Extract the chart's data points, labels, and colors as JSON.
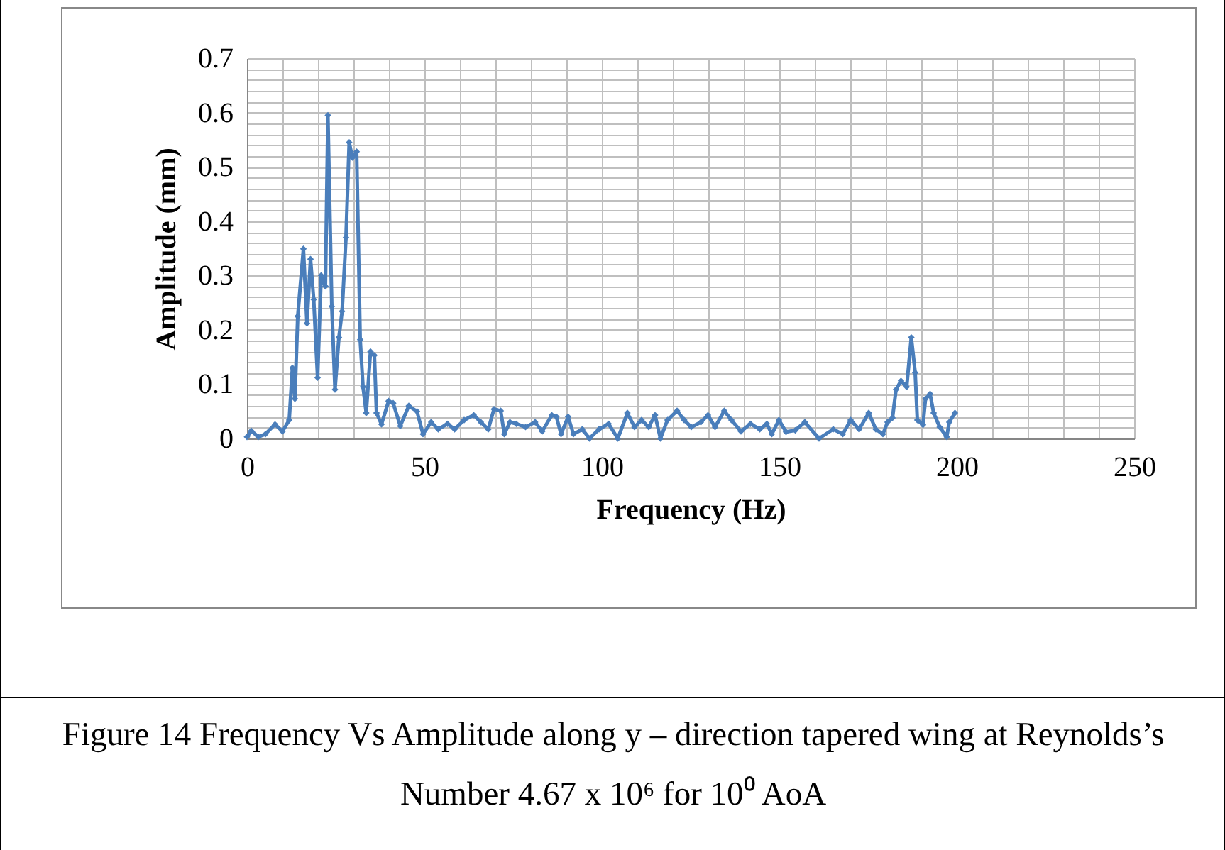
{
  "chart_data": {
    "type": "line",
    "title": "Figure 14 Frequency Vs Amplitude along y – direction tapered wing at Reynolds’s Number 4.67 x 10⁶ for 10⁰ AoA",
    "xlabel": "Frequency (Hz)",
    "ylabel": "Amplitude (mm)",
    "x": [
      0,
      1.2,
      3.2,
      5.2,
      7.9,
      10,
      11.9,
      12.8,
      13.5,
      14.3,
      15.9,
      16.9,
      17.9,
      18.8,
      19.9,
      20.9,
      22.1,
      22.8,
      23.9,
      24.8,
      25.9,
      26.8,
      27.9,
      28.8,
      29.7,
      30.9,
      31.9,
      32.7,
      33.6,
      34.8,
      35.9,
      36.5,
      37.9,
      39.9,
      41.2,
      43.2,
      45.6,
      47.9,
      49.6,
      51.9,
      53.9,
      56.5,
      58.5,
      61.2,
      63.9,
      65.9,
      68,
      69.6,
      71.5,
      72.5,
      74.1,
      75.9,
      78.5,
      81.2,
      83.2,
      85.9,
      87.2,
      88.5,
      90.5,
      92,
      94.5,
      96.5,
      99.2,
      101.9,
      104.5,
      107.2,
      109.2,
      111.2,
      113.2,
      115,
      116.5,
      118.5,
      121.2,
      123.2,
      125.2,
      127.9,
      129.9,
      131.9,
      134.5,
      136.5,
      139.2,
      141.9,
      144.5,
      146.5,
      147.9,
      149.9,
      151.9,
      154.5,
      157.2,
      161.2,
      165.2,
      167.9,
      170.1,
      172.5,
      175.2,
      177.2,
      179.2,
      180.5,
      181.9,
      182.9,
      184.3,
      185.9,
      187.2,
      188.3,
      188.9,
      190.5,
      191.2,
      192.5,
      193.5,
      195.2,
      197.2,
      197.9,
      199.5
    ],
    "series": [
      {
        "color": "#4a7ebb",
        "values": [
          0.003,
          0.014,
          0.003,
          0.008,
          0.026,
          0.013,
          0.034,
          0.13,
          0.073,
          0.225,
          0.349,
          0.212,
          0.33,
          0.256,
          0.112,
          0.3,
          0.28,
          0.595,
          0.243,
          0.09,
          0.186,
          0.234,
          0.37,
          0.545,
          0.517,
          0.528,
          0.182,
          0.095,
          0.047,
          0.16,
          0.153,
          0.047,
          0.026,
          0.069,
          0.065,
          0.023,
          0.06,
          0.05,
          0.008,
          0.03,
          0.017,
          0.027,
          0.017,
          0.034,
          0.043,
          0.03,
          0.017,
          0.054,
          0.051,
          0.008,
          0.03,
          0.027,
          0.021,
          0.03,
          0.013,
          0.043,
          0.04,
          0.008,
          0.04,
          0.008,
          0.017,
          0.0,
          0.017,
          0.027,
          0.0,
          0.047,
          0.021,
          0.034,
          0.021,
          0.043,
          0.0,
          0.034,
          0.051,
          0.034,
          0.021,
          0.03,
          0.043,
          0.021,
          0.051,
          0.034,
          0.013,
          0.027,
          0.017,
          0.027,
          0.008,
          0.034,
          0.012,
          0.015,
          0.03,
          0.0,
          0.017,
          0.008,
          0.034,
          0.017,
          0.047,
          0.017,
          0.008,
          0.03,
          0.038,
          0.09,
          0.106,
          0.095,
          0.186,
          0.121,
          0.034,
          0.025,
          0.073,
          0.082,
          0.047,
          0.021,
          0.003,
          0.03,
          0.047
        ]
      }
    ],
    "xlim": [
      0,
      250
    ],
    "xticks": [
      0,
      {
        "value": 10,
        "label": null
      },
      {
        "value": 20,
        "label": null
      },
      {
        "value": 30,
        "label": null
      },
      {
        "value": 40,
        "label": null
      },
      50,
      {
        "value": 60,
        "label": null
      },
      {
        "value": 70,
        "label": null
      },
      {
        "value": 80,
        "label": null
      },
      {
        "value": 90,
        "label": null
      },
      100,
      {
        "value": 110,
        "label": null
      },
      {
        "value": 120,
        "label": null
      },
      {
        "value": 130,
        "label": null
      },
      {
        "value": 140,
        "label": null
      },
      150,
      {
        "value": 160,
        "label": null
      },
      {
        "value": 170,
        "label": null
      },
      {
        "value": 180,
        "label": null
      },
      {
        "value": 190,
        "label": null
      },
      200,
      {
        "value": 210,
        "label": null
      },
      {
        "value": 220,
        "label": null
      },
      {
        "value": 230,
        "label": null
      },
      {
        "value": 240,
        "label": null
      },
      250
    ],
    "ylim": [
      0,
      0.7
    ],
    "yticks": [
      0,
      {
        "value": 0.02,
        "label": null
      },
      {
        "value": 0.04,
        "label": null
      },
      {
        "value": 0.06,
        "label": null
      },
      {
        "value": 0.08,
        "label": null
      },
      0.1,
      {
        "value": 0.12,
        "label": null
      },
      {
        "value": 0.14,
        "label": null
      },
      {
        "value": 0.16,
        "label": null
      },
      {
        "value": 0.18,
        "label": null
      },
      0.2,
      {
        "value": 0.22,
        "label": null
      },
      {
        "value": 0.24,
        "label": null
      },
      {
        "value": 0.26,
        "label": null
      },
      {
        "value": 0.28,
        "label": null
      },
      0.3,
      {
        "value": 0.32,
        "label": null
      },
      {
        "value": 0.34,
        "label": null
      },
      {
        "value": 0.36,
        "label": null
      },
      {
        "value": 0.38,
        "label": null
      },
      0.4,
      {
        "value": 0.42,
        "label": null
      },
      {
        "value": 0.44,
        "label": null
      },
      {
        "value": 0.46,
        "label": null
      },
      {
        "value": 0.48,
        "label": null
      },
      0.5,
      {
        "value": 0.52,
        "label": null
      },
      {
        "value": 0.54,
        "label": null
      },
      {
        "value": 0.56,
        "label": null
      },
      {
        "value": 0.58,
        "label": null
      },
      0.6,
      {
        "value": 0.62,
        "label": null
      },
      {
        "value": 0.64,
        "label": null
      },
      {
        "value": 0.66,
        "label": null
      },
      {
        "value": 0.68,
        "label": null
      },
      0.7
    ],
    "grid": true,
    "marker": "diamond",
    "line_style": "solid"
  }
}
